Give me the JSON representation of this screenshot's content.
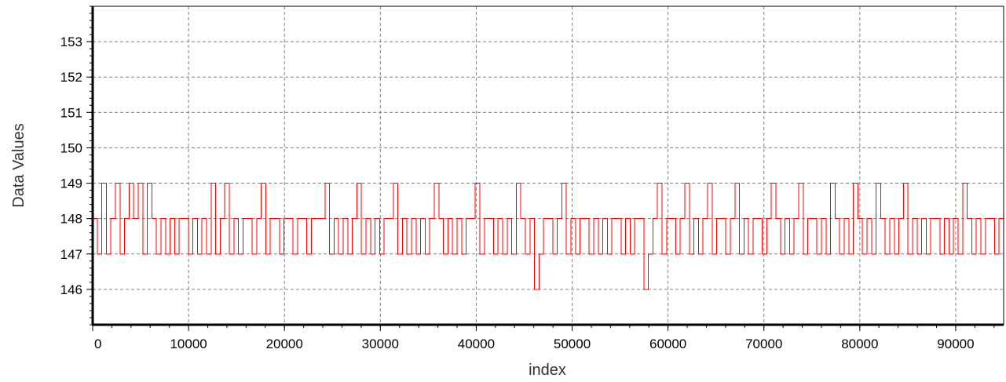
{
  "chart_data": {
    "type": "line",
    "title": "",
    "xlabel": "index",
    "ylabel": "Data Values",
    "xlim": [
      0,
      95000
    ],
    "ylim": [
      145,
      154
    ],
    "x_ticks": [
      0,
      10000,
      20000,
      30000,
      40000,
      50000,
      60000,
      70000,
      80000,
      90000
    ],
    "x_tick_labels": [
      "0",
      "10000",
      "20000",
      "30000",
      "40000",
      "50000",
      "60000",
      "70000",
      "80000",
      "90000"
    ],
    "y_ticks": [
      146,
      147,
      148,
      149,
      150,
      151,
      152,
      153
    ],
    "y_tick_labels": [
      "146",
      "147",
      "148",
      "149",
      "150",
      "151",
      "152",
      "153"
    ],
    "grid": true,
    "legend": "none",
    "line_color": "#ff0000",
    "y_range_observed": [
      146,
      150
    ],
    "series": [
      {
        "values_sampled_every_500": [
          148,
          147,
          149,
          147,
          148,
          149,
          147,
          148,
          149,
          148,
          149,
          147,
          149,
          148,
          147,
          148,
          147,
          148,
          147,
          148,
          148,
          147,
          148,
          147,
          148,
          147,
          149,
          147,
          148,
          149,
          147,
          148,
          147,
          148,
          148,
          147,
          148,
          149,
          147,
          148,
          148,
          147,
          148,
          148,
          147,
          148,
          148,
          147,
          148,
          148,
          148,
          149,
          147,
          148,
          147,
          148,
          147,
          148,
          149,
          147,
          148,
          147,
          148,
          147,
          148,
          148,
          149,
          147,
          148,
          147,
          148,
          147,
          148,
          147,
          148,
          149,
          148,
          147,
          148,
          147,
          148,
          147,
          148,
          148,
          149,
          147,
          148,
          148,
          147,
          148,
          147,
          148,
          147,
          149,
          148,
          147,
          148,
          146,
          147,
          148,
          148,
          147,
          148,
          149,
          147,
          148,
          147,
          148,
          148,
          147,
          148,
          147,
          148,
          147,
          148,
          148,
          147,
          148,
          147,
          148,
          148,
          146,
          147,
          148,
          149,
          147,
          148,
          148,
          147,
          148,
          149,
          147,
          148,
          147,
          148,
          149,
          147,
          148,
          148,
          147,
          148,
          149,
          147,
          148,
          147,
          148,
          148,
          147,
          148,
          149,
          148,
          147,
          148,
          147,
          148,
          149,
          147,
          148,
          148,
          147,
          148,
          147,
          149,
          148,
          147,
          148,
          147,
          149,
          148,
          147,
          148,
          147,
          149,
          148,
          147,
          148,
          147,
          148,
          149,
          147,
          148,
          147,
          148,
          147,
          148,
          148,
          147,
          148,
          147,
          148,
          147,
          149,
          148,
          147,
          148,
          147,
          148,
          148,
          147,
          148
        ]
      }
    ]
  }
}
